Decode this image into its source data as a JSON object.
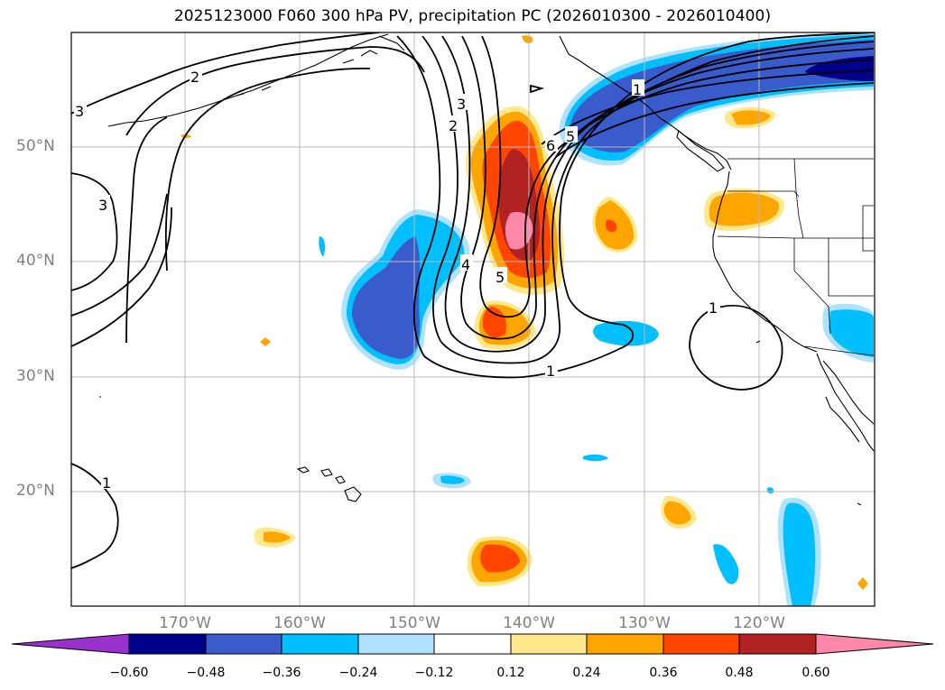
{
  "title": "2025123000 F060 300 hPa PV, precipitation PC (2026010300 - 2026010400)",
  "lat_labels": [
    "50°N",
    "40°N",
    "30°N",
    "20°N"
  ],
  "lon_labels": [
    "170°W",
    "160°W",
    "150°W",
    "140°W",
    "130°W",
    "120°W"
  ],
  "colorbar": {
    "ticks": [
      "−0.60",
      "−0.48",
      "−0.36",
      "−0.24",
      "−0.12",
      "0.12",
      "0.24",
      "0.36",
      "0.48",
      "0.60"
    ],
    "colors": [
      "#9932cc",
      "#00008b",
      "#3a5bcc",
      "#00bfff",
      "#b0e2ff",
      "#ffffff",
      "#ffe88c",
      "#ffa500",
      "#ff4500",
      "#b22222",
      "#ff88aa"
    ]
  },
  "pv_contour_labels": [
    "2",
    "3",
    "3",
    "2",
    "3",
    "4",
    "5",
    "6",
    "5",
    "1",
    "1",
    "1",
    "1"
  ],
  "palette": {
    "purple": "#9932cc",
    "navy": "#00008b",
    "royal_blue": "#3a5bcc",
    "sky_blue": "#00bfff",
    "light_blue": "#b0e2ff",
    "light_yellow": "#ffe88c",
    "orange": "#ffa500",
    "orange_red": "#ff4500",
    "firebrick": "#b22222",
    "pink": "#ff88aa"
  }
}
